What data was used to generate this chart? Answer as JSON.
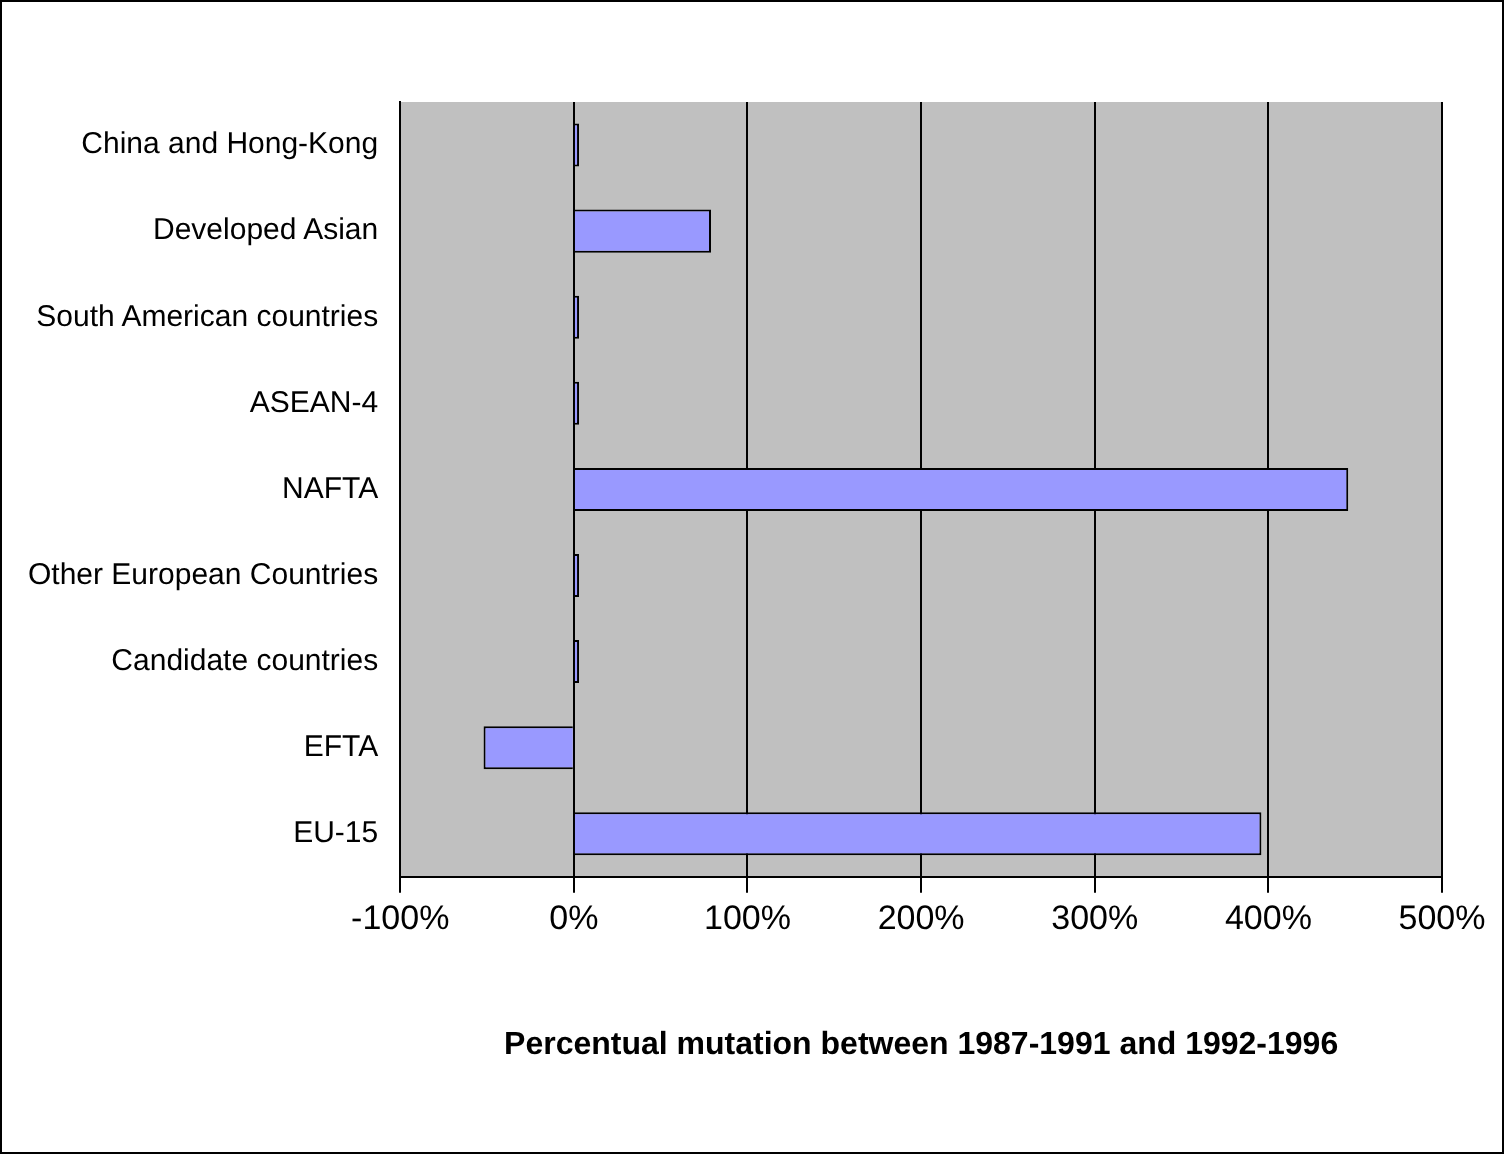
{
  "chart_data": {
    "type": "bar",
    "orientation": "horizontal",
    "xlabel": "Percentual mutation between 1987-1991 and 1992-1996",
    "categories": [
      "China and Hong-Kong",
      "Developed Asian",
      "South American countries",
      "ASEAN-4",
      "NAFTA",
      "Other European Countries",
      "Candidate countries",
      "EFTA",
      "EU-15"
    ],
    "values": [
      3,
      79,
      3,
      3,
      446,
      3,
      3,
      -52,
      396
    ],
    "color": "#9999ff",
    "xlim": [
      -100,
      500
    ],
    "xticks": [
      {
        "value": -100,
        "label": "-100%"
      },
      {
        "value": 0,
        "label": "0%"
      },
      {
        "value": 100,
        "label": "100%"
      },
      {
        "value": 200,
        "label": "200%"
      },
      {
        "value": 300,
        "label": "300%"
      },
      {
        "value": 400,
        "label": "400%"
      },
      {
        "value": 500,
        "label": "500%"
      }
    ],
    "grid": "x",
    "legend": false
  }
}
